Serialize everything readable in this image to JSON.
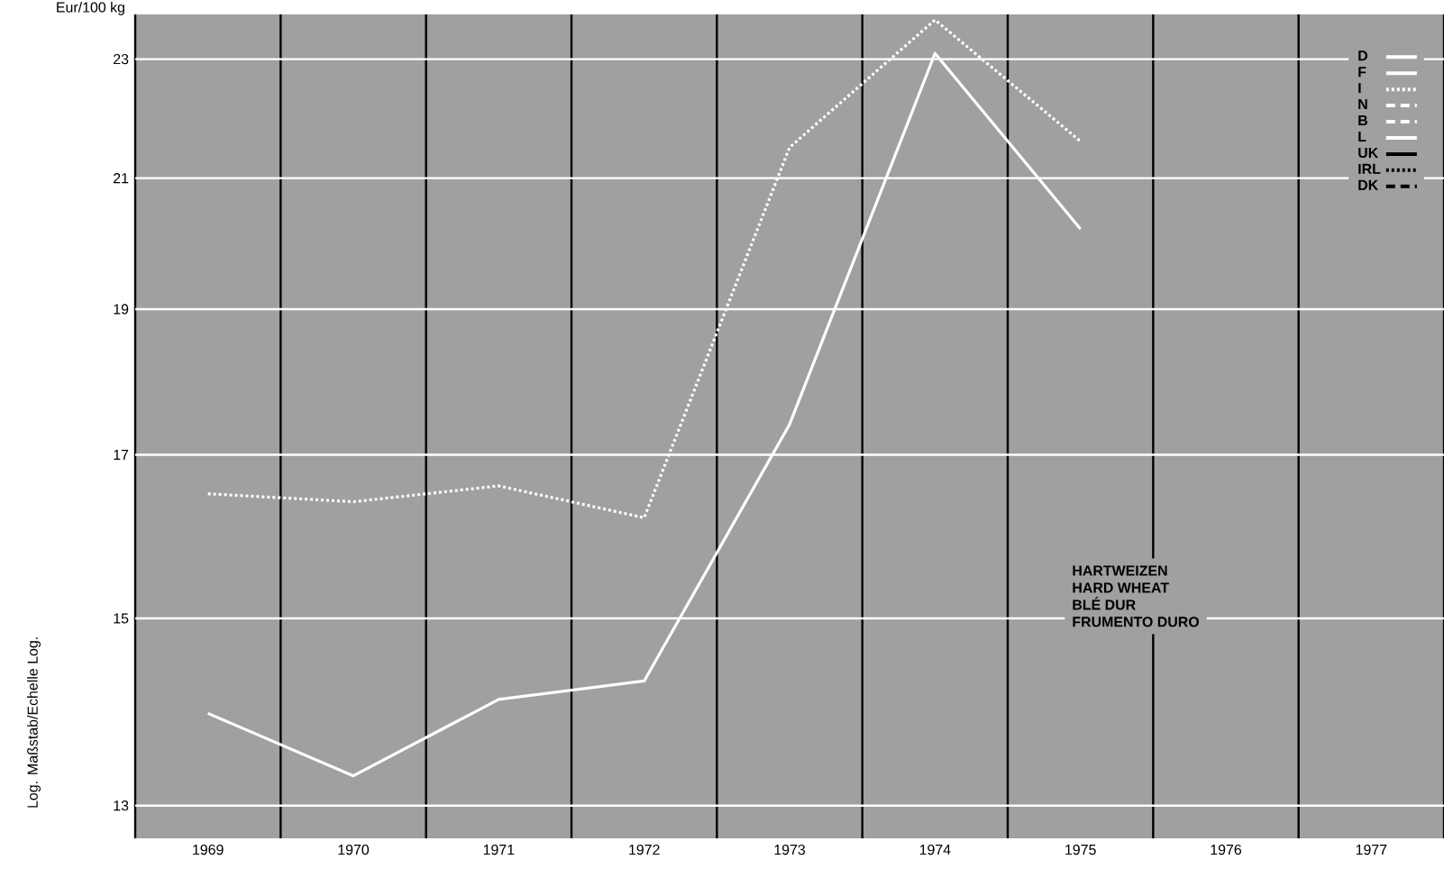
{
  "chart_data": {
    "type": "line",
    "ylabel": "Eur/100 kg",
    "categories": [
      "1969",
      "1970",
      "1971",
      "1972",
      "1973",
      "1974",
      "1975",
      "1976",
      "1977"
    ],
    "log": "y",
    "ylim": [
      12.68,
      23.8
    ],
    "yticks": [
      13,
      15,
      17,
      19,
      21,
      23
    ],
    "grid": true,
    "legend": "top right",
    "marker": "none",
    "series": [
      {
        "name": "D",
        "color": "#ffffff",
        "line_style": "solid",
        "values": [
          null,
          null,
          null,
          null,
          null,
          null,
          null,
          null,
          null
        ]
      },
      {
        "name": "F",
        "color": "#ffffff",
        "line_style": "solid",
        "values": [
          13.95,
          13.3,
          14.1,
          14.3,
          17.4,
          23.1,
          20.2,
          null,
          null
        ]
      },
      {
        "name": "I",
        "color": "#ffffff",
        "line_style": "dotted",
        "values": [
          16.5,
          16.4,
          16.6,
          16.2,
          21.5,
          23.7,
          21.6,
          null,
          null
        ]
      },
      {
        "name": "N",
        "color": "#ffffff",
        "line_style": "dashed",
        "values": [
          null,
          null,
          null,
          null,
          null,
          null,
          null,
          null,
          null
        ]
      },
      {
        "name": "B",
        "color": "#ffffff",
        "line_style": "dashed",
        "values": [
          null,
          null,
          null,
          null,
          null,
          null,
          null,
          null,
          null
        ]
      },
      {
        "name": "L",
        "color": "#ffffff",
        "line_style": "solid",
        "values": [
          null,
          null,
          null,
          null,
          null,
          null,
          null,
          null,
          null
        ]
      },
      {
        "name": "UK",
        "color": "#000000",
        "line_style": "solid",
        "values": [
          null,
          null,
          null,
          null,
          null,
          null,
          null,
          null,
          null
        ]
      },
      {
        "name": "IRL",
        "color": "#000000",
        "line_style": "dotted",
        "values": [
          null,
          null,
          null,
          null,
          null,
          null,
          null,
          null,
          null
        ]
      },
      {
        "name": "DK",
        "color": "#000000",
        "line_style": "dashed",
        "values": [
          null,
          null,
          null,
          null,
          null,
          null,
          null,
          null,
          null
        ]
      }
    ],
    "annotations": [
      "Log. Maßstab/Echelle Log.",
      "HARTWEIZEN",
      "HARD WHEAT",
      "BLÉ DUR",
      "FRUMENTO DURO"
    ]
  }
}
